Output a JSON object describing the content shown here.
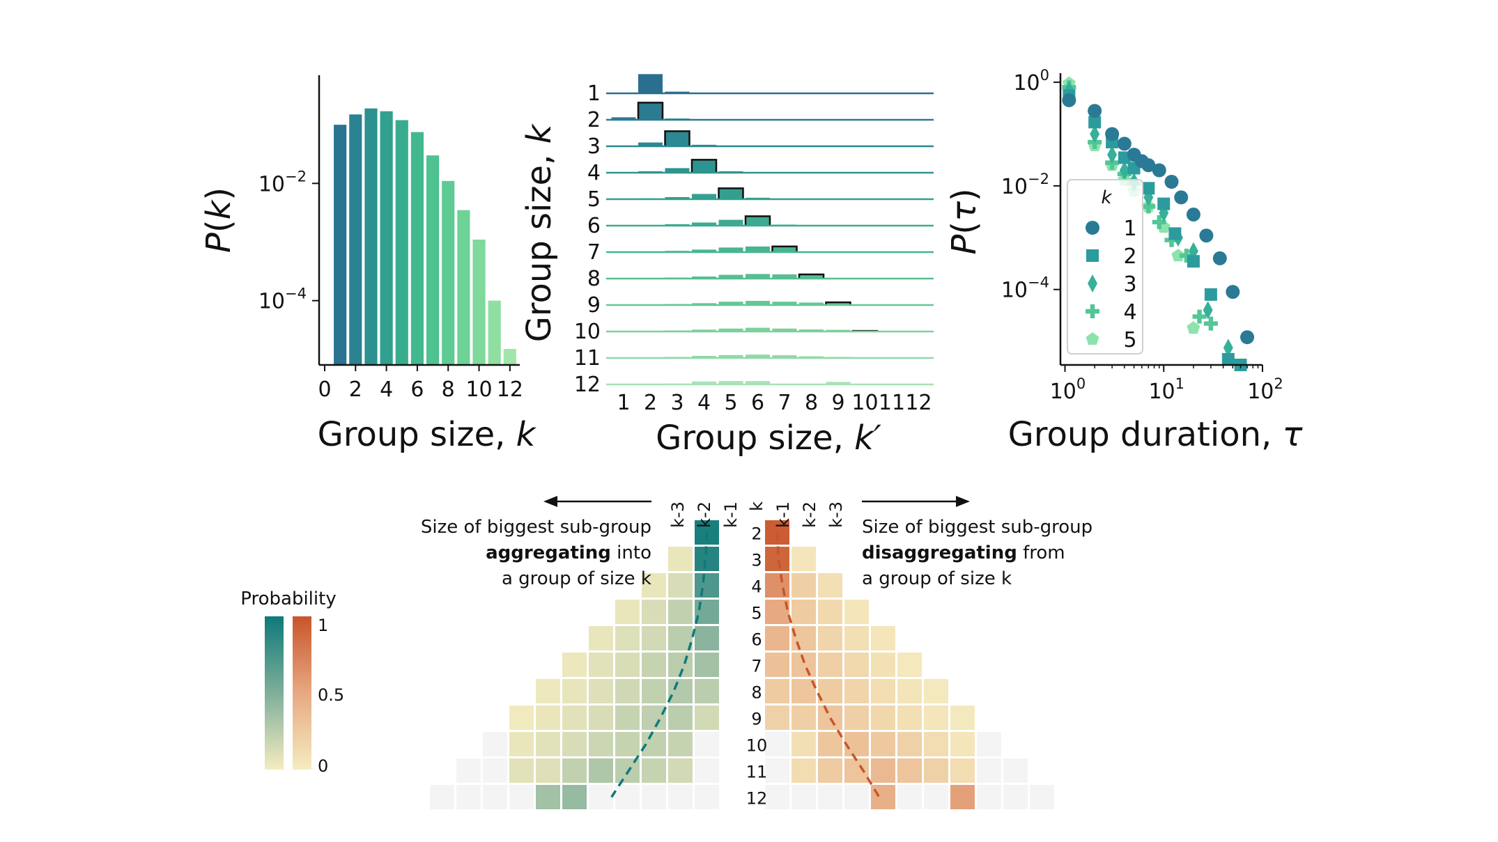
{
  "chart_data": [
    {
      "id": "panel_pk",
      "type": "bar",
      "xlabel": "Group size, k",
      "ylabel": "P(k)",
      "yscale": "log",
      "ylim": [
        8e-06,
        0.7
      ],
      "xticks": [
        "0",
        "2",
        "4",
        "6",
        "8",
        "10",
        "12"
      ],
      "yticks": [
        {
          "value": 0.01,
          "base": "10",
          "exp": "−2"
        },
        {
          "value": 0.0001,
          "base": "10",
          "exp": "−4"
        }
      ],
      "categories": [
        1,
        2,
        3,
        4,
        5,
        6,
        7,
        8,
        9,
        10,
        11,
        12
      ],
      "values": [
        0.1,
        0.15,
        0.19,
        0.17,
        0.12,
        0.075,
        0.03,
        0.011,
        0.0035,
        0.0011,
        0.0001,
        1.5e-05
      ],
      "colors": [
        "#2a7391",
        "#2b8290",
        "#2d918f",
        "#31a08f",
        "#38ad8e",
        "#42b88f",
        "#4fc291",
        "#5ecb93",
        "#6dd296",
        "#7ed99b",
        "#8fdfa2",
        "#a2e5ab"
      ]
    },
    {
      "id": "panel_kk",
      "type": "bar",
      "subtype": "ridge",
      "xlabel": "Group size, k′",
      "ylabel": "Group size, k",
      "xticks": [
        "1",
        "2",
        "3",
        "4",
        "5",
        "6",
        "7",
        "8",
        "9",
        "10",
        "11",
        "12"
      ],
      "yticks": [
        "1",
        "2",
        "3",
        "4",
        "5",
        "6",
        "7",
        "8",
        "9",
        "10",
        "11",
        "12"
      ],
      "series": [
        {
          "k": 1,
          "values": [
            0,
            0.92,
            0.08,
            0,
            0,
            0,
            0,
            0,
            0,
            0,
            0,
            0
          ]
        },
        {
          "k": 2,
          "values": [
            0.12,
            0.82,
            0.06,
            0,
            0,
            0,
            0,
            0,
            0,
            0,
            0,
            0
          ]
        },
        {
          "k": 3,
          "values": [
            0.03,
            0.18,
            0.72,
            0.07,
            0,
            0,
            0,
            0,
            0,
            0,
            0,
            0
          ]
        },
        {
          "k": 4,
          "values": [
            0.02,
            0.07,
            0.22,
            0.62,
            0.07,
            0,
            0,
            0,
            0,
            0,
            0,
            0
          ]
        },
        {
          "k": 5,
          "values": [
            0.02,
            0.04,
            0.1,
            0.25,
            0.52,
            0.07,
            0,
            0,
            0,
            0,
            0,
            0
          ]
        },
        {
          "k": 6,
          "values": [
            0.02,
            0.03,
            0.07,
            0.15,
            0.28,
            0.45,
            0.05,
            0,
            0,
            0,
            0,
            0
          ]
        },
        {
          "k": 7,
          "values": [
            0.02,
            0.03,
            0.06,
            0.12,
            0.22,
            0.27,
            0.27,
            0.03,
            0,
            0,
            0,
            0
          ]
        },
        {
          "k": 8,
          "values": [
            0.02,
            0.03,
            0.05,
            0.1,
            0.18,
            0.22,
            0.2,
            0.2,
            0.02,
            0,
            0,
            0
          ]
        },
        {
          "k": 9,
          "values": [
            0.01,
            0.03,
            0.05,
            0.09,
            0.16,
            0.2,
            0.16,
            0.12,
            0.13,
            0.01,
            0,
            0
          ]
        },
        {
          "k": 10,
          "values": [
            0.01,
            0.03,
            0.05,
            0.09,
            0.14,
            0.18,
            0.14,
            0.1,
            0.08,
            0.03,
            0,
            0
          ]
        },
        {
          "k": 11,
          "values": [
            0.01,
            0.02,
            0.05,
            0.1,
            0.14,
            0.16,
            0.13,
            0.08,
            0.05,
            0,
            0,
            0
          ]
        },
        {
          "k": 12,
          "values": [
            0,
            0,
            0.04,
            0.14,
            0.16,
            0.16,
            0,
            0,
            0.12,
            0,
            0,
            0
          ]
        }
      ]
    },
    {
      "id": "panel_tau",
      "type": "scatter",
      "xscale": "log",
      "yscale": "log",
      "xlim": [
        0.9,
        100
      ],
      "ylim": [
        3.5e-06,
        1.5
      ],
      "xlabel": "Group duration, τ",
      "ylabel": "P(τ)",
      "xticks": [
        {
          "value": 1,
          "base": "10",
          "exp": "0"
        },
        {
          "value": 10,
          "base": "10",
          "exp": "1"
        },
        {
          "value": 100,
          "base": "10",
          "exp": "2"
        }
      ],
      "yticks": [
        {
          "value": 1,
          "base": "10",
          "exp": "0"
        },
        {
          "value": 0.01,
          "base": "10",
          "exp": "−2"
        },
        {
          "value": 0.0001,
          "base": "10",
          "exp": "−4"
        }
      ],
      "legend": {
        "title": "k",
        "position": "lower-left inside"
      },
      "series": [
        {
          "name": "1",
          "marker": "circle",
          "color": "#2a7a95",
          "points": [
            [
              1.1,
              0.45
            ],
            [
              2,
              0.28
            ],
            [
              3,
              0.1
            ],
            [
              4,
              0.065
            ],
            [
              5,
              0.04
            ],
            [
              6,
              0.03
            ],
            [
              7,
              0.025
            ],
            [
              9,
              0.02
            ],
            [
              12,
              0.012
            ],
            [
              15,
              0.006
            ],
            [
              20,
              0.0028
            ],
            [
              27,
              0.0011
            ],
            [
              37,
              0.0004
            ],
            [
              50,
              9e-05
            ],
            [
              70,
              1.2e-05
            ]
          ]
        },
        {
          "name": "2",
          "marker": "square",
          "color": "#2c9b9e",
          "points": [
            [
              1.1,
              0.55
            ],
            [
              2,
              0.17
            ],
            [
              3,
              0.07
            ],
            [
              4,
              0.035
            ],
            [
              5,
              0.022
            ],
            [
              7,
              0.009
            ],
            [
              10,
              0.0045
            ],
            [
              13,
              0.0012
            ],
            [
              20,
              0.00035
            ],
            [
              30,
              8e-05
            ],
            [
              45,
              4.5e-06
            ],
            [
              60,
              3.5e-06
            ]
          ]
        },
        {
          "name": "3",
          "marker": "diamond",
          "color": "#37b099",
          "points": [
            [
              1.1,
              0.7
            ],
            [
              2,
              0.1
            ],
            [
              3,
              0.04
            ],
            [
              4,
              0.02
            ],
            [
              5,
              0.012
            ],
            [
              7,
              0.006
            ],
            [
              10,
              0.003
            ],
            [
              14,
              0.001
            ],
            [
              20,
              0.00055
            ],
            [
              28,
              4e-05
            ],
            [
              45,
              7.5e-06
            ]
          ]
        },
        {
          "name": "4",
          "marker": "plus",
          "color": "#53c696",
          "points": [
            [
              1.1,
              0.8
            ],
            [
              2,
              0.07
            ],
            [
              3,
              0.028
            ],
            [
              4,
              0.017
            ],
            [
              5,
              0.011
            ],
            [
              7,
              0.004
            ],
            [
              9,
              0.002
            ],
            [
              12,
              0.0009
            ],
            [
              17,
              0.00045
            ],
            [
              23,
              3e-05
            ],
            [
              30,
              2.2e-05
            ]
          ]
        },
        {
          "name": "5",
          "marker": "pentagon",
          "color": "#8ee3ad",
          "points": [
            [
              1.1,
              0.95
            ],
            [
              2,
              0.06
            ],
            [
              3,
              0.025
            ],
            [
              4,
              0.013
            ],
            [
              5,
              0.008
            ],
            [
              7,
              0.004
            ],
            [
              10,
              0.0016
            ],
            [
              14,
              0.00045
            ],
            [
              20,
              1.8e-05
            ]
          ]
        }
      ]
    },
    {
      "id": "panel_triangle",
      "type": "heatmap",
      "rows": [
        "2",
        "3",
        "4",
        "5",
        "6",
        "7",
        "8",
        "9",
        "10",
        "11",
        "12"
      ],
      "columns": [
        "k-3",
        "k-2",
        "k-1",
        "k",
        "k-1",
        "k-2",
        "k-3"
      ],
      "left": {
        "title": [
          "Size of biggest sub-group",
          "aggregating",
          " into",
          "a group of size k"
        ],
        "rows": [
          [
            0.95
          ],
          [
            0.9,
            0.05
          ],
          [
            0.72,
            0.12,
            0.05
          ],
          [
            0.55,
            0.22,
            0.12,
            0.05
          ],
          [
            0.45,
            0.25,
            0.15,
            0.1,
            0.05
          ],
          [
            0.35,
            0.25,
            0.2,
            0.12,
            0.08,
            0.04
          ],
          [
            0.25,
            0.28,
            0.22,
            0.16,
            0.1,
            0.06,
            0.03
          ],
          [
            0.15,
            0.25,
            0.23,
            0.2,
            0.12,
            0.08,
            0.05,
            0.02
          ],
          [
            0.0,
            0.2,
            0.22,
            0.2,
            0.18,
            0.12,
            0.08,
            0.05,
            0.0
          ],
          [
            0.0,
            0.15,
            0.2,
            0.25,
            0.3,
            0.22,
            0.1,
            0.08,
            0.0,
            0.0
          ],
          [
            0.0,
            0.0,
            0.0,
            0.0,
            0.0,
            0.4,
            0.35,
            0.0,
            0.0,
            0.0,
            0.0
          ]
        ],
        "curve_row": [
          2,
          3,
          4,
          5,
          6,
          7,
          8,
          9,
          10,
          11,
          12
        ],
        "curve_offset": [
          1.0,
          1.05,
          1.15,
          1.3,
          1.55,
          1.85,
          2.25,
          2.75,
          3.3,
          3.95,
          4.6
        ]
      },
      "right": {
        "title": [
          "Size of biggest sub-group",
          "disaggregating",
          " from",
          "a group of size k"
        ],
        "rows": [
          [
            0.95
          ],
          [
            0.9,
            0.05
          ],
          [
            0.65,
            0.22,
            0.1
          ],
          [
            0.5,
            0.25,
            0.15,
            0.05
          ],
          [
            0.4,
            0.28,
            0.18,
            0.1,
            0.05
          ],
          [
            0.32,
            0.3,
            0.22,
            0.15,
            0.08,
            0.03
          ],
          [
            0.25,
            0.28,
            0.25,
            0.18,
            0.12,
            0.06,
            0.02
          ],
          [
            0.2,
            0.22,
            0.3,
            0.22,
            0.16,
            0.1,
            0.05,
            0.02
          ],
          [
            0.0,
            0.1,
            0.28,
            0.32,
            0.26,
            0.2,
            0.12,
            0.05,
            0.0
          ],
          [
            0.0,
            0.12,
            0.25,
            0.3,
            0.38,
            0.3,
            0.2,
            0.12,
            0.0,
            0.0
          ],
          [
            0.0,
            0.0,
            0.0,
            0.0,
            0.45,
            0.0,
            0.0,
            0.55,
            0.0,
            0.0,
            0.0
          ]
        ],
        "curve_row": [
          2,
          3,
          4,
          5,
          6,
          7,
          8,
          9,
          10,
          11,
          12
        ],
        "curve_offset": [
          1.0,
          1.05,
          1.2,
          1.4,
          1.7,
          2.05,
          2.5,
          3.0,
          3.6,
          4.25,
          4.85
        ]
      },
      "colorbar": {
        "title": "Probability",
        "ticks": [
          "1",
          "0.5",
          "0"
        ],
        "colors_left": [
          "#0e7a7a",
          "#7fae9a",
          "#f5ecc0"
        ],
        "colors_right": [
          "#c8552b",
          "#e7a982",
          "#f5ecc0"
        ]
      }
    }
  ]
}
